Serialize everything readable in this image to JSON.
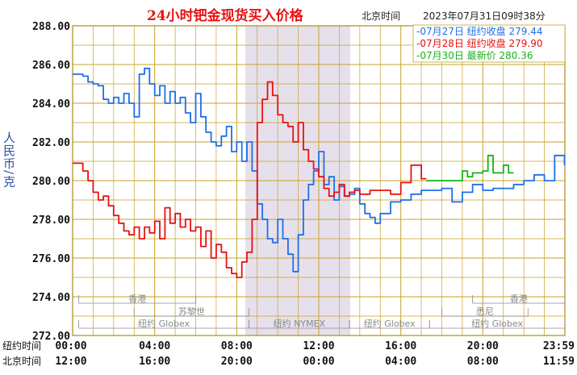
{
  "chart_data": {
    "type": "line",
    "title": "24小时钯金现货买入价格",
    "timestamp_label": "北京时间",
    "timestamp": "2023年07月31日09时38分",
    "ylabel": "人民币/克",
    "ylim": [
      272,
      288
    ],
    "y_ticks": [
      "288.00",
      "286.00",
      "284.00",
      "282.00",
      "280.00",
      "278.00",
      "276.00",
      "274.00",
      "272.00"
    ],
    "x_ticks_ny": [
      "00:00",
      "04:00",
      "08:00",
      "12:00",
      "16:00",
      "20:00",
      "23:59"
    ],
    "x_ticks_bj": [
      "12:00",
      "16:00",
      "20:00",
      "00:00",
      "04:00",
      "08:00",
      "11:59"
    ],
    "x_row_labels": {
      "ny": "纽约时间",
      "bj": "北京时间"
    },
    "grid": true,
    "legend_position": "top-right",
    "legend": [
      {
        "date": "07月27日",
        "label": "纽约收盘",
        "value": "279.44",
        "color": "#1e6fe6"
      },
      {
        "date": "07月28日",
        "label": "纽约收盘",
        "value": "279.90",
        "color": "#e81010"
      },
      {
        "date": "07月30日",
        "label": "最新价",
        "value": "280.36",
        "color": "#19b019"
      }
    ],
    "sessions": [
      {
        "label": "香港",
        "row": 1
      },
      {
        "label": "苏黎世",
        "row": 2
      },
      {
        "label": "纽约 Globex",
        "row": 3
      },
      {
        "label": "纽约 NYMEX",
        "row": 3
      },
      {
        "label": "纽约 Globex",
        "row": 3
      },
      {
        "label": "悉尼",
        "row": 2
      },
      {
        "label": "香港",
        "row": 1
      },
      {
        "label": "纽约 Globex",
        "row": 3
      }
    ],
    "series": [
      {
        "color": "#1e6fe6",
        "x": [
          0.0,
          0.25,
          0.5,
          0.75,
          1.0,
          1.25,
          1.5,
          1.75,
          2.0,
          2.25,
          2.5,
          2.75,
          3.0,
          3.25,
          3.5,
          3.75,
          4.0,
          4.25,
          4.5,
          4.75,
          5.0,
          5.25,
          5.5,
          5.75,
          6.0,
          6.25,
          6.5,
          6.75,
          7.0,
          7.25,
          7.5,
          7.75,
          8.0,
          8.25,
          8.5,
          8.75,
          9.0,
          9.25,
          9.5,
          9.75,
          10.0,
          10.25,
          10.5,
          10.75,
          11.0,
          11.25,
          11.5,
          11.75,
          12.0,
          12.25,
          12.5,
          12.75,
          13.0,
          13.25,
          13.5,
          13.75,
          14.0,
          14.25,
          14.5,
          14.75,
          15.0,
          15.5,
          16.0,
          16.5,
          17.0,
          17.5,
          18.0,
          18.5,
          19.0,
          19.5,
          20.0,
          20.5,
          21.0,
          21.5,
          22.0,
          22.5,
          23.0,
          23.5,
          23.98
        ],
        "y": [
          285.5,
          285.5,
          285.4,
          285.1,
          285.0,
          284.9,
          284.2,
          284.0,
          284.3,
          284.0,
          284.5,
          284.0,
          283.3,
          285.5,
          285.8,
          285.0,
          284.4,
          284.9,
          284.0,
          284.6,
          284.0,
          284.3,
          283.5,
          283.0,
          284.5,
          283.3,
          282.5,
          282.0,
          281.8,
          282.3,
          282.8,
          281.5,
          282.0,
          281.0,
          282.0,
          280.5,
          278.8,
          278.0,
          277.0,
          276.8,
          278.0,
          277.0,
          276.2,
          275.3,
          277.2,
          279.0,
          279.8,
          280.5,
          281.5,
          279.8,
          280.2,
          279.0,
          279.7,
          279.2,
          279.3,
          279.6,
          278.8,
          278.3,
          278.1,
          277.8,
          278.3,
          278.9,
          279.0,
          279.3,
          279.5,
          279.5,
          279.6,
          278.9,
          279.4,
          279.8,
          279.5,
          279.6,
          279.6,
          279.8,
          280.0,
          280.3,
          280.0,
          281.3,
          280.8
        ]
      },
      {
        "color": "#e81010",
        "x": [
          0.0,
          0.25,
          0.5,
          0.75,
          1.0,
          1.25,
          1.5,
          1.75,
          2.0,
          2.25,
          2.5,
          2.75,
          3.0,
          3.25,
          3.5,
          3.75,
          4.0,
          4.25,
          4.5,
          4.75,
          5.0,
          5.25,
          5.5,
          5.75,
          6.0,
          6.25,
          6.5,
          6.75,
          7.0,
          7.25,
          7.5,
          7.75,
          8.0,
          8.25,
          8.5,
          8.75,
          9.0,
          9.25,
          9.5,
          9.75,
          10.0,
          10.25,
          10.5,
          10.75,
          11.0,
          11.25,
          11.5,
          11.75,
          12.0,
          12.25,
          12.5,
          12.75,
          13.0,
          13.25,
          13.5,
          13.75,
          14.0,
          14.5,
          15.0,
          15.5,
          16.0,
          16.5,
          17.0,
          17.25
        ],
        "y": [
          280.9,
          280.9,
          280.5,
          280.0,
          279.4,
          279.0,
          279.2,
          278.7,
          278.2,
          277.8,
          277.4,
          277.2,
          277.6,
          277.0,
          277.6,
          277.3,
          277.9,
          277.0,
          278.6,
          277.8,
          278.3,
          277.6,
          278.0,
          277.4,
          277.6,
          276.6,
          277.4,
          276.0,
          276.7,
          276.3,
          275.5,
          275.2,
          275.0,
          275.8,
          276.3,
          278.0,
          283.0,
          284.2,
          285.1,
          284.4,
          283.4,
          283.0,
          282.8,
          282.0,
          283.0,
          281.6,
          281.0,
          280.6,
          280.2,
          279.6,
          279.2,
          279.4,
          279.8,
          279.2,
          279.4,
          279.5,
          279.3,
          279.5,
          279.5,
          279.3,
          279.9,
          280.8,
          280.1,
          280.1
        ]
      },
      {
        "color": "#19b019",
        "x": [
          17.25,
          17.5,
          18.0,
          18.5,
          19.0,
          19.25,
          19.5,
          19.75,
          20.0,
          20.25,
          20.5,
          20.75,
          21.0,
          21.25,
          21.5
        ],
        "y": [
          280.0,
          280.0,
          280.0,
          280.0,
          280.5,
          280.2,
          280.4,
          280.4,
          280.5,
          281.3,
          280.4,
          280.4,
          280.8,
          280.4,
          280.4
        ]
      }
    ]
  }
}
